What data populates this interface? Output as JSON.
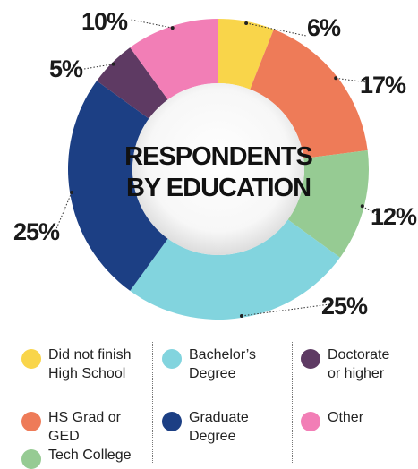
{
  "chart_data": {
    "type": "pie",
    "title": "RESPONDENTS BY EDUCATION",
    "categories": [
      "Did not finish High School",
      "HS Grad or GED",
      "Tech College",
      "Bachelor’s Degree",
      "Graduate Degree",
      "Doctorate or higher",
      "Other"
    ],
    "values": [
      6,
      17,
      12,
      25,
      25,
      5,
      10
    ],
    "labels": [
      "6%",
      "17%",
      "12%",
      "25%",
      "25%",
      "5%",
      "10%"
    ],
    "colors": [
      "#F9D54A",
      "#EE7B58",
      "#96CB93",
      "#82D4DE",
      "#1C3F84",
      "#5E3A63",
      "#F27EB6"
    ],
    "donut": true,
    "legend_position": "bottom"
  },
  "legend": {
    "col1": [
      {
        "line1": "Did not finish",
        "line2": "High School",
        "color": "#F9D54A"
      },
      {
        "line1": "HS Grad or GED",
        "line2": "",
        "color": "#EE7B58"
      },
      {
        "line1": "Tech College",
        "line2": "",
        "color": "#96CB93"
      }
    ],
    "col2": [
      {
        "line1": "Bachelor’s",
        "line2": "Degree",
        "color": "#82D4DE"
      },
      {
        "line1": "Graduate",
        "line2": "Degree",
        "color": "#1C3F84"
      }
    ],
    "col3": [
      {
        "line1": "Doctorate",
        "line2": "or higher",
        "color": "#5E3A63"
      },
      {
        "line1": "Other",
        "line2": "",
        "color": "#F27EB6"
      }
    ]
  },
  "center": {
    "line1": "RESPONDENTS",
    "line2": "BY EDUCATION"
  }
}
